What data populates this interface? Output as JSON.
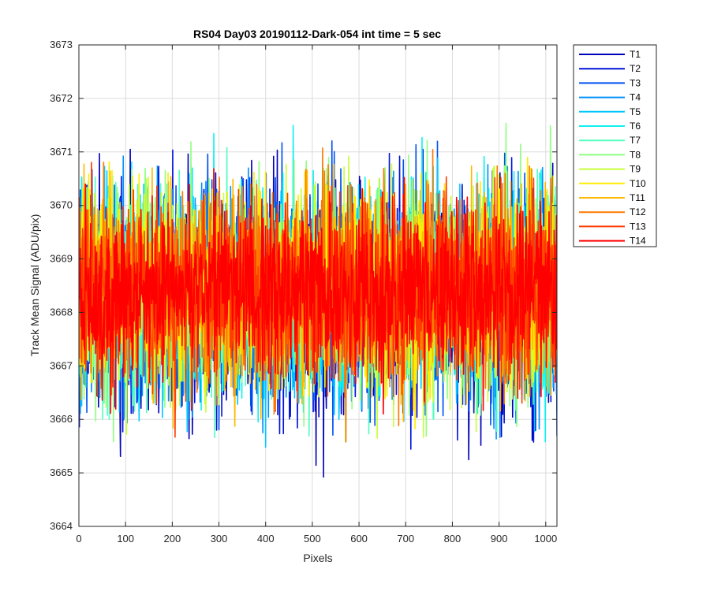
{
  "chart_data": {
    "type": "line",
    "title": "RS04 Day03 20190112-Dark-054 int time = 5 sec",
    "xlabel": "Pixels",
    "ylabel": "Track Mean Signal (ADU/pix)",
    "xlim": [
      0,
      1024
    ],
    "ylim": [
      3664,
      3673
    ],
    "xticks": [
      "0",
      "100",
      "200",
      "300",
      "400",
      "500",
      "600",
      "700",
      "800",
      "900",
      "1000"
    ],
    "yticks": [
      "3664",
      "3665",
      "3666",
      "3667",
      "3668",
      "3669",
      "3670",
      "3671",
      "3672",
      "3673"
    ],
    "grid": true,
    "legend_position": "outside-right",
    "x_range": [
      1,
      1024
    ],
    "series": [
      {
        "name": "T1",
        "color": "#0000b8",
        "mean": 3668.2,
        "spread": 0.95,
        "min": 3664.5,
        "max": 3671.1
      },
      {
        "name": "T2",
        "color": "#0014d8",
        "mean": 3668.2,
        "spread": 0.95,
        "min": 3665.0,
        "max": 3671.2
      },
      {
        "name": "T3",
        "color": "#0050f0",
        "mean": 3668.3,
        "spread": 0.95,
        "min": 3665.2,
        "max": 3671.3
      },
      {
        "name": "T4",
        "color": "#0090ff",
        "mean": 3668.3,
        "spread": 0.95,
        "min": 3665.3,
        "max": 3672.2
      },
      {
        "name": "T5",
        "color": "#00c8ff",
        "mean": 3668.3,
        "spread": 0.9,
        "min": 3665.3,
        "max": 3671.6
      },
      {
        "name": "T6",
        "color": "#10f0f0",
        "mean": 3668.4,
        "spread": 0.9,
        "min": 3665.5,
        "max": 3672.1
      },
      {
        "name": "T7",
        "color": "#50ffc0",
        "mean": 3668.4,
        "spread": 0.9,
        "min": 3665.6,
        "max": 3671.5
      },
      {
        "name": "T8",
        "color": "#90ff80",
        "mean": 3668.4,
        "spread": 0.9,
        "min": 3665.3,
        "max": 3671.6
      },
      {
        "name": "T9",
        "color": "#c8ff38",
        "mean": 3668.4,
        "spread": 0.9,
        "min": 3665.6,
        "max": 3671.6
      },
      {
        "name": "T10",
        "color": "#ffee00",
        "mean": 3668.5,
        "spread": 0.9,
        "min": 3665.6,
        "max": 3672.0
      },
      {
        "name": "T11",
        "color": "#ffb800",
        "mean": 3668.4,
        "spread": 0.85,
        "min": 3665.6,
        "max": 3671.6
      },
      {
        "name": "T12",
        "color": "#ff7800",
        "mean": 3668.4,
        "spread": 0.85,
        "min": 3665.1,
        "max": 3671.4
      },
      {
        "name": "T13",
        "color": "#ff3c00",
        "mean": 3668.4,
        "spread": 0.85,
        "min": 3665.2,
        "max": 3671.3
      },
      {
        "name": "T14",
        "color": "#ff0000",
        "mean": 3668.4,
        "spread": 0.8,
        "min": 3665.4,
        "max": 3671.2
      }
    ]
  }
}
